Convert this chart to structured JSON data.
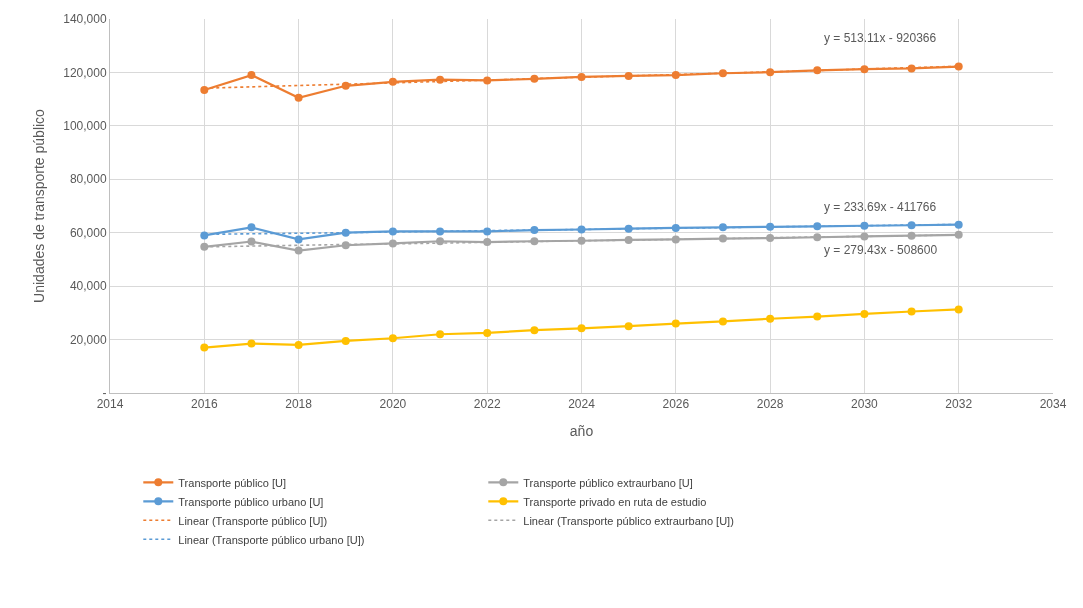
{
  "chart_data": {
    "type": "line",
    "xlabel": "año",
    "ylabel": "Unidades de transporte público",
    "x": [
      2016,
      2017,
      2018,
      2019,
      2020,
      2021,
      2022,
      2023,
      2024,
      2025,
      2026,
      2027,
      2028,
      2029,
      2030,
      2031,
      2032
    ],
    "series": [
      {
        "name": "Transporte público [U]",
        "color": "#ed7d31",
        "marker": "circle",
        "line_style": "solid",
        "values": [
          113400,
          119000,
          110500,
          115000,
          116500,
          117300,
          117000,
          117600,
          118300,
          118700,
          119000,
          119700,
          120100,
          120800,
          121200,
          121500,
          122200
        ]
      },
      {
        "name": "Transporte público extraurbano [U]",
        "color": "#a5a5a5",
        "marker": "circle",
        "line_style": "solid",
        "values": [
          54700,
          56700,
          53300,
          55300,
          56000,
          56800,
          56500,
          56800,
          57000,
          57300,
          57500,
          57800,
          58000,
          58300,
          58600,
          58900,
          59200
        ]
      },
      {
        "name": "Transporte público urbano [U]",
        "color": "#5b9bd5",
        "marker": "circle",
        "line_style": "solid",
        "values": [
          59000,
          62000,
          57500,
          60000,
          60500,
          60500,
          60500,
          61000,
          61200,
          61500,
          61800,
          62000,
          62200,
          62400,
          62600,
          62800,
          63000
        ]
      },
      {
        "name": "Transporte privado en ruta de estudio",
        "color": "#ffc000",
        "marker": "circle",
        "line_style": "solid",
        "values": [
          17000,
          18500,
          18000,
          19500,
          20500,
          22000,
          22500,
          23500,
          24200,
          25000,
          26000,
          26800,
          27800,
          28600,
          29600,
          30500,
          31300
        ]
      },
      {
        "name": "Linear (Transporte público [U])",
        "color": "#ed7d31",
        "marker": "none",
        "line_style": "dotted",
        "values": [
          114100,
          114600,
          115100,
          115600,
          116100,
          116600,
          117100,
          117700,
          118200,
          118700,
          119200,
          119700,
          120200,
          120700,
          121300,
          121800,
          122300
        ]
      },
      {
        "name": "Linear (Transporte público extraurbano [U])",
        "color": "#a5a5a5",
        "marker": "none",
        "line_style": "dotted",
        "values": [
          54700,
          55000,
          55300,
          55600,
          55800,
          56100,
          56400,
          56700,
          57000,
          57200,
          57500,
          57800,
          58100,
          58400,
          58600,
          58900,
          59200
        ]
      },
      {
        "name": "Linear (Transporte público urbano [U])",
        "color": "#5b9bd5",
        "marker": "none",
        "line_style": "dotted",
        "values": [
          59400,
          59600,
          59800,
          60000,
          60300,
          60500,
          60800,
          61000,
          61200,
          61500,
          61700,
          61900,
          62200,
          62400,
          62600,
          62900,
          63100
        ]
      }
    ],
    "xlim": [
      2014,
      2034
    ],
    "xticks": [
      2014,
      2016,
      2018,
      2020,
      2022,
      2024,
      2026,
      2028,
      2030,
      2032,
      2034
    ],
    "ylim": [
      0,
      140000
    ],
    "yticks": [
      {
        "value": 0,
        "label": "-"
      },
      {
        "value": 20000,
        "label": "20,000"
      },
      {
        "value": 40000,
        "label": "40,000"
      },
      {
        "value": 60000,
        "label": "60,000"
      },
      {
        "value": 80000,
        "label": "80,000"
      },
      {
        "value": 100000,
        "label": "100,000"
      },
      {
        "value": 120000,
        "label": "120,000"
      },
      {
        "value": 140000,
        "label": "140,000"
      }
    ],
    "annotations": [
      "y = 513.11x - 920366",
      "y = 233.69x - 411766",
      "y = 279.43x - 508600"
    ],
    "grid": true,
    "legend": "bottom"
  }
}
